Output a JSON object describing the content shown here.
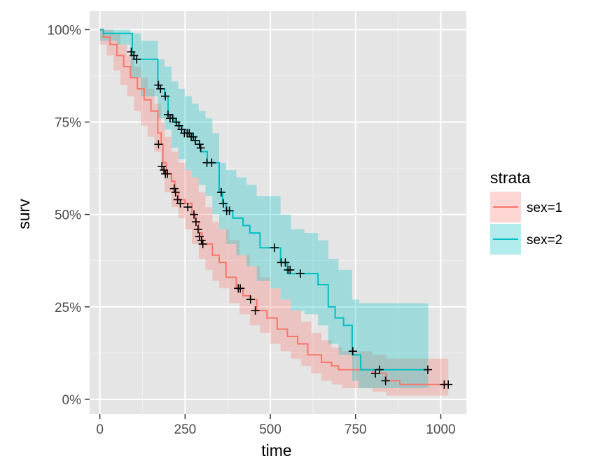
{
  "chart_data": {
    "type": "line",
    "subtype": "kaplan-meier survival curve with confidence bands",
    "xlabel": "time",
    "ylabel": "surv",
    "xlim": [
      -30,
      1075
    ],
    "ylim": [
      -0.04,
      1.05
    ],
    "x_ticks": [
      0,
      250,
      500,
      750,
      1000
    ],
    "y_ticks": [
      0,
      0.25,
      0.5,
      0.75,
      1.0
    ],
    "x_tick_labels": [
      "0",
      "250",
      "500",
      "750",
      "1000"
    ],
    "y_tick_labels": [
      "0%",
      "25%",
      "50%",
      "75%",
      "100%"
    ],
    "grid": true,
    "background": "#e5e5e5",
    "legend": {
      "title": "strata",
      "position": "right"
    },
    "series": [
      {
        "name": "sex=1",
        "color": "#F8766D",
        "fill": "#F8766D",
        "steps": [
          [
            0,
            1.0
          ],
          [
            10,
            0.98
          ],
          [
            30,
            0.96
          ],
          [
            50,
            0.93
          ],
          [
            70,
            0.9
          ],
          [
            90,
            0.87
          ],
          [
            110,
            0.84
          ],
          [
            130,
            0.81
          ],
          [
            150,
            0.78
          ],
          [
            170,
            0.72
          ],
          [
            180,
            0.69
          ],
          [
            185,
            0.64
          ],
          [
            195,
            0.61
          ],
          [
            210,
            0.59
          ],
          [
            220,
            0.56
          ],
          [
            230,
            0.54
          ],
          [
            250,
            0.53
          ],
          [
            270,
            0.5
          ],
          [
            280,
            0.48
          ],
          [
            290,
            0.45
          ],
          [
            300,
            0.42
          ],
          [
            330,
            0.39
          ],
          [
            350,
            0.37
          ],
          [
            370,
            0.33
          ],
          [
            400,
            0.3
          ],
          [
            420,
            0.28
          ],
          [
            440,
            0.27
          ],
          [
            460,
            0.24
          ],
          [
            490,
            0.22
          ],
          [
            520,
            0.19
          ],
          [
            550,
            0.17
          ],
          [
            580,
            0.15
          ],
          [
            610,
            0.12
          ],
          [
            650,
            0.1
          ],
          [
            680,
            0.09
          ],
          [
            700,
            0.08
          ],
          [
            800,
            0.07
          ],
          [
            840,
            0.05
          ],
          [
            880,
            0.04
          ],
          [
            1022,
            0.04
          ]
        ],
        "lower": [
          [
            0,
            0.96
          ],
          [
            20,
            0.93
          ],
          [
            40,
            0.89
          ],
          [
            60,
            0.85
          ],
          [
            80,
            0.82
          ],
          [
            100,
            0.78
          ],
          [
            120,
            0.74
          ],
          [
            140,
            0.71
          ],
          [
            160,
            0.67
          ],
          [
            180,
            0.61
          ],
          [
            190,
            0.56
          ],
          [
            210,
            0.52
          ],
          [
            230,
            0.49
          ],
          [
            250,
            0.46
          ],
          [
            270,
            0.42
          ],
          [
            290,
            0.38
          ],
          [
            310,
            0.35
          ],
          [
            330,
            0.32
          ],
          [
            350,
            0.3
          ],
          [
            380,
            0.26
          ],
          [
            410,
            0.23
          ],
          [
            440,
            0.2
          ],
          [
            470,
            0.18
          ],
          [
            500,
            0.15
          ],
          [
            530,
            0.13
          ],
          [
            560,
            0.11
          ],
          [
            590,
            0.09
          ],
          [
            620,
            0.07
          ],
          [
            650,
            0.05
          ],
          [
            680,
            0.04
          ],
          [
            710,
            0.03
          ],
          [
            800,
            0.02
          ],
          [
            840,
            0.01
          ],
          [
            1022,
            0.01
          ]
        ],
        "upper": [
          [
            0,
            1.0
          ],
          [
            20,
            1.0
          ],
          [
            40,
            0.99
          ],
          [
            60,
            0.96
          ],
          [
            80,
            0.93
          ],
          [
            100,
            0.9
          ],
          [
            120,
            0.87
          ],
          [
            140,
            0.84
          ],
          [
            160,
            0.8
          ],
          [
            180,
            0.75
          ],
          [
            190,
            0.71
          ],
          [
            210,
            0.67
          ],
          [
            230,
            0.64
          ],
          [
            250,
            0.62
          ],
          [
            270,
            0.6
          ],
          [
            290,
            0.56
          ],
          [
            310,
            0.52
          ],
          [
            330,
            0.48
          ],
          [
            350,
            0.46
          ],
          [
            380,
            0.43
          ],
          [
            410,
            0.39
          ],
          [
            440,
            0.36
          ],
          [
            470,
            0.33
          ],
          [
            500,
            0.3
          ],
          [
            530,
            0.27
          ],
          [
            560,
            0.24
          ],
          [
            590,
            0.21
          ],
          [
            620,
            0.18
          ],
          [
            650,
            0.16
          ],
          [
            680,
            0.14
          ],
          [
            710,
            0.13
          ],
          [
            800,
            0.12
          ],
          [
            840,
            0.11
          ],
          [
            1022,
            0.11
          ]
        ],
        "censors": [
          [
            172,
            0.69
          ],
          [
            182,
            0.63
          ],
          [
            188,
            0.62
          ],
          [
            192,
            0.61
          ],
          [
            198,
            0.61
          ],
          [
            218,
            0.57
          ],
          [
            222,
            0.56
          ],
          [
            228,
            0.54
          ],
          [
            236,
            0.53
          ],
          [
            258,
            0.52
          ],
          [
            276,
            0.5
          ],
          [
            282,
            0.48
          ],
          [
            288,
            0.46
          ],
          [
            292,
            0.44
          ],
          [
            298,
            0.43
          ],
          [
            302,
            0.42
          ],
          [
            406,
            0.3
          ],
          [
            412,
            0.3
          ],
          [
            442,
            0.27
          ],
          [
            456,
            0.24
          ],
          [
            808,
            0.07
          ],
          [
            838,
            0.05
          ],
          [
            1010,
            0.04
          ],
          [
            1022,
            0.04
          ]
        ]
      },
      {
        "name": "sex=2",
        "color": "#00BFC4",
        "fill": "#00BFC4",
        "steps": [
          [
            0,
            1.0
          ],
          [
            10,
            0.99
          ],
          [
            60,
            0.99
          ],
          [
            95,
            0.93
          ],
          [
            100,
            0.92
          ],
          [
            170,
            0.84
          ],
          [
            190,
            0.82
          ],
          [
            200,
            0.77
          ],
          [
            210,
            0.76
          ],
          [
            220,
            0.75
          ],
          [
            230,
            0.74
          ],
          [
            240,
            0.73
          ],
          [
            250,
            0.72
          ],
          [
            270,
            0.71
          ],
          [
            280,
            0.69
          ],
          [
            295,
            0.67
          ],
          [
            315,
            0.64
          ],
          [
            335,
            0.64
          ],
          [
            350,
            0.56
          ],
          [
            360,
            0.53
          ],
          [
            370,
            0.51
          ],
          [
            390,
            0.49
          ],
          [
            420,
            0.47
          ],
          [
            440,
            0.45
          ],
          [
            470,
            0.41
          ],
          [
            510,
            0.41
          ],
          [
            530,
            0.37
          ],
          [
            550,
            0.34
          ],
          [
            600,
            0.34
          ],
          [
            640,
            0.31
          ],
          [
            670,
            0.25
          ],
          [
            690,
            0.22
          ],
          [
            715,
            0.2
          ],
          [
            740,
            0.12
          ],
          [
            760,
            0.12
          ],
          [
            765,
            0.08
          ],
          [
            963,
            0.08
          ]
        ],
        "lower": [
          [
            0,
            0.97
          ],
          [
            50,
            0.96
          ],
          [
            90,
            0.87
          ],
          [
            120,
            0.82
          ],
          [
            170,
            0.76
          ],
          [
            190,
            0.73
          ],
          [
            210,
            0.68
          ],
          [
            230,
            0.65
          ],
          [
            250,
            0.62
          ],
          [
            270,
            0.6
          ],
          [
            290,
            0.58
          ],
          [
            310,
            0.55
          ],
          [
            330,
            0.5
          ],
          [
            350,
            0.46
          ],
          [
            370,
            0.42
          ],
          [
            400,
            0.39
          ],
          [
            430,
            0.36
          ],
          [
            460,
            0.32
          ],
          [
            500,
            0.3
          ],
          [
            530,
            0.27
          ],
          [
            560,
            0.24
          ],
          [
            600,
            0.23
          ],
          [
            640,
            0.2
          ],
          [
            670,
            0.15
          ],
          [
            700,
            0.12
          ],
          [
            740,
            0.05
          ],
          [
            760,
            0.03
          ],
          [
            963,
            0.03
          ]
        ],
        "upper": [
          [
            0,
            1.0
          ],
          [
            60,
            1.0
          ],
          [
            90,
            0.99
          ],
          [
            120,
            0.97
          ],
          [
            170,
            0.92
          ],
          [
            190,
            0.9
          ],
          [
            210,
            0.86
          ],
          [
            230,
            0.84
          ],
          [
            250,
            0.82
          ],
          [
            270,
            0.8
          ],
          [
            290,
            0.78
          ],
          [
            310,
            0.76
          ],
          [
            330,
            0.72
          ],
          [
            350,
            0.64
          ],
          [
            370,
            0.62
          ],
          [
            400,
            0.6
          ],
          [
            430,
            0.58
          ],
          [
            460,
            0.55
          ],
          [
            500,
            0.55
          ],
          [
            530,
            0.5
          ],
          [
            560,
            0.46
          ],
          [
            600,
            0.45
          ],
          [
            640,
            0.43
          ],
          [
            670,
            0.38
          ],
          [
            700,
            0.35
          ],
          [
            740,
            0.27
          ],
          [
            760,
            0.26
          ],
          [
            963,
            0.26
          ]
        ],
        "censors": [
          [
            92,
            0.94
          ],
          [
            100,
            0.93
          ],
          [
            108,
            0.92
          ],
          [
            172,
            0.85
          ],
          [
            178,
            0.84
          ],
          [
            192,
            0.82
          ],
          [
            200,
            0.77
          ],
          [
            206,
            0.76
          ],
          [
            214,
            0.76
          ],
          [
            224,
            0.75
          ],
          [
            232,
            0.74
          ],
          [
            240,
            0.73
          ],
          [
            248,
            0.72
          ],
          [
            256,
            0.72
          ],
          [
            262,
            0.72
          ],
          [
            268,
            0.71
          ],
          [
            274,
            0.71
          ],
          [
            280,
            0.7
          ],
          [
            292,
            0.69
          ],
          [
            296,
            0.68
          ],
          [
            314,
            0.64
          ],
          [
            328,
            0.64
          ],
          [
            356,
            0.56
          ],
          [
            362,
            0.53
          ],
          [
            372,
            0.51
          ],
          [
            380,
            0.51
          ],
          [
            512,
            0.41
          ],
          [
            532,
            0.37
          ],
          [
            544,
            0.37
          ],
          [
            552,
            0.35
          ],
          [
            558,
            0.35
          ],
          [
            588,
            0.34
          ],
          [
            742,
            0.13
          ],
          [
            820,
            0.08
          ],
          [
            962,
            0.08
          ]
        ]
      }
    ]
  }
}
